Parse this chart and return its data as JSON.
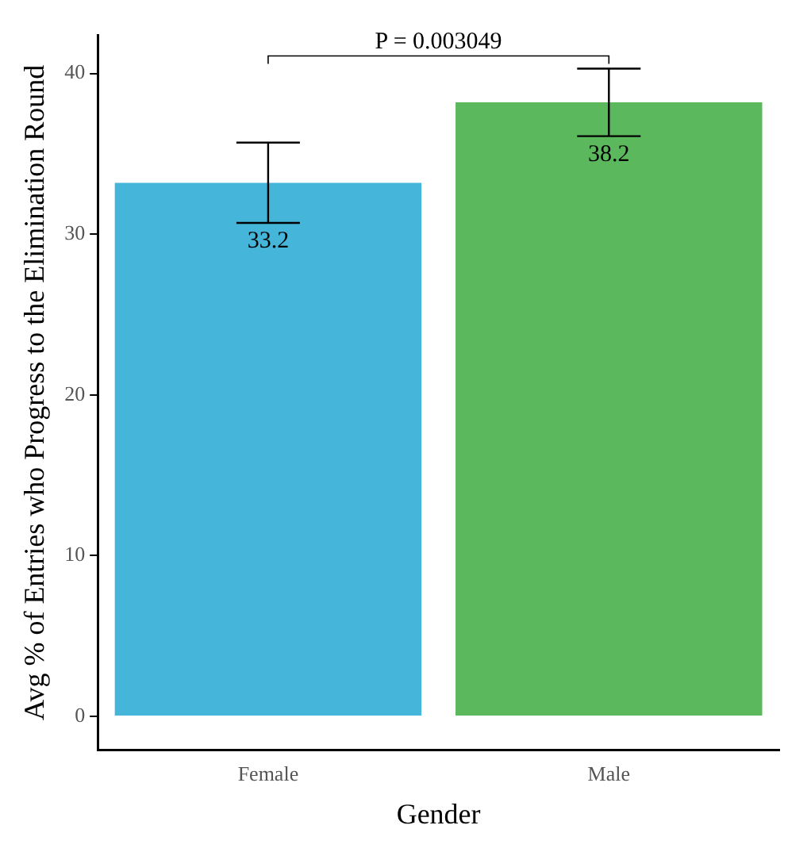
{
  "chart_data": {
    "type": "bar",
    "xlabel": "Gender",
    "ylabel": "Avg % of Entries who Progress to the Elimination Round",
    "categories": [
      "Female",
      "Male"
    ],
    "values": [
      33.2,
      38.2
    ],
    "colors": [
      "#45b6da",
      "#5cb85c"
    ],
    "errors": [
      2.5,
      2.1
    ],
    "data_labels": true,
    "annotations": [
      "P = 0.003049"
    ],
    "ylim": [
      -2.1,
      42.4
    ],
    "yticks": [
      0,
      10,
      20,
      30,
      40
    ],
    "grid": false,
    "legend": false
  }
}
